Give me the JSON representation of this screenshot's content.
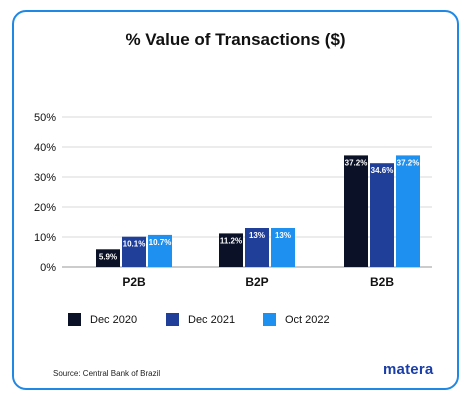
{
  "chart_data": {
    "type": "bar",
    "title": "% Value of Transactions ($)",
    "categories": [
      "P2B",
      "B2P",
      "B2B"
    ],
    "series": [
      {
        "name": "Dec 2020",
        "color": "#0b1228",
        "values": [
          5.9,
          11.2,
          37.2
        ],
        "labels": [
          "5.9%",
          "11.2%",
          "37.2%"
        ]
      },
      {
        "name": "Dec 2021",
        "color": "#1f3f99",
        "values": [
          10.1,
          13,
          34.6
        ],
        "labels": [
          "10.1%",
          "13%",
          "34.6%"
        ]
      },
      {
        "name": "Oct 2022",
        "color": "#1e90f0",
        "values": [
          10.7,
          13,
          37.2
        ],
        "labels": [
          "10.7%",
          "13%",
          "37.2%"
        ]
      }
    ],
    "ylim": [
      0,
      50
    ],
    "yticks": [
      0,
      10,
      20,
      30,
      40,
      50
    ],
    "ytick_labels": [
      "0%",
      "10%",
      "20%",
      "30%",
      "40%",
      "50%"
    ],
    "grid": true,
    "legend_position": "bottom"
  },
  "source": "Source: Central Bank of Brazil",
  "brand": "matera",
  "colors": {
    "frame": "#1f88e5",
    "grid": "#d9d9d9"
  }
}
